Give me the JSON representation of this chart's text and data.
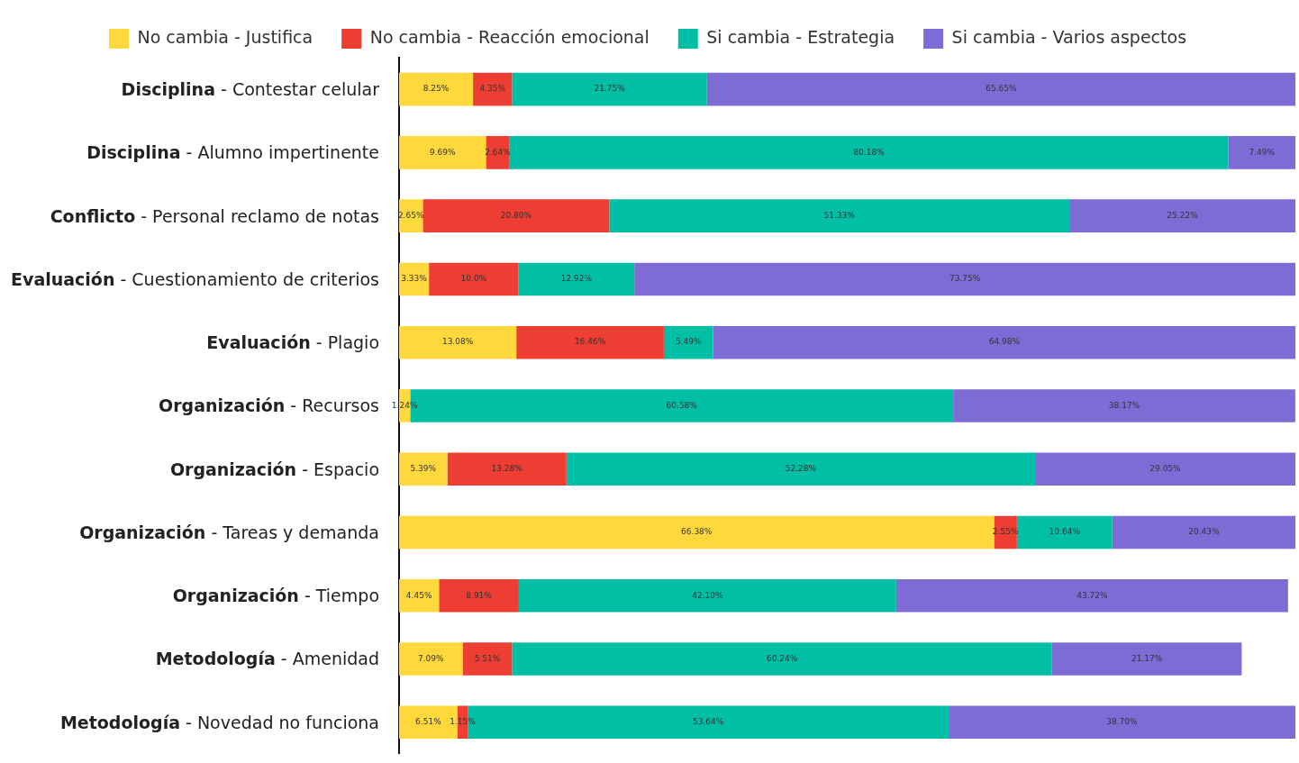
{
  "chart_data": {
    "type": "bar",
    "orientation": "horizontal",
    "stacked": true,
    "legend": "top",
    "grid": false,
    "tick_labels": "y",
    "xlim": [
      0,
      100
    ],
    "categories": [
      "Disciplina - Contestar celular",
      "Disciplina - Alumno impertinente",
      "Conflicto - Personal reclamo de notas",
      "Evaluación - Cuestionamiento de criterios",
      "Evaluación - Plagio",
      "Organización - Recursos",
      "Organización - Espacio",
      "Organización - Tareas y demanda",
      "Organización - Tiempo",
      "Metodología - Amenidad",
      "Metodología - Novedad no funciona"
    ],
    "series": [
      {
        "name": "No cambia - Justifica",
        "color": "#ffd83b",
        "values": [
          8.25,
          9.69,
          2.65,
          3.33,
          13.08,
          1.24,
          5.39,
          66.38,
          4.45,
          7.09,
          6.51
        ],
        "value_labels": [
          "8.25%",
          "9.69%",
          "2.65%",
          "3.33%",
          "13.08%",
          "1.24%",
          "5.39%",
          "66.38%",
          "4.45%",
          "7.09%",
          "6.51%"
        ]
      },
      {
        "name": "No cambia - Reacción emocional",
        "color": "#ee3d32",
        "values": [
          4.35,
          2.64,
          20.8,
          10.0,
          16.46,
          null,
          13.28,
          2.55,
          8.91,
          5.51,
          1.15
        ],
        "value_labels": [
          "4.35%",
          "2.64%",
          "20.80%",
          "10.0%",
          "16.46%",
          null,
          "13.28%",
          "2.55%",
          "8.91%",
          "5.51%",
          "1.15%"
        ]
      },
      {
        "name": "Si cambia - Estrategia",
        "color": "#00bfa5",
        "values": [
          21.75,
          80.18,
          51.33,
          12.92,
          5.49,
          60.58,
          52.28,
          10.64,
          42.1,
          60.24,
          53.64
        ],
        "value_labels": [
          "21.75%",
          "80.18%",
          "51.33%",
          "12.92%",
          "5.49%",
          "60.58%",
          "52.28%",
          "10.64%",
          "42.10%",
          "60.24%",
          "53.64%"
        ]
      },
      {
        "name": "Si cambia - Varios aspectos",
        "color": "#7e6bd6",
        "values": [
          65.65,
          7.49,
          25.22,
          73.75,
          64.98,
          38.17,
          29.05,
          20.43,
          43.72,
          21.17,
          38.7
        ],
        "value_labels": [
          "65.65%",
          "7.49%",
          "25.22%",
          "73.75%",
          "64.98%",
          "38.17%",
          "29.05%",
          "20.43%",
          "43.72%",
          "21.17%",
          "38.70%"
        ]
      }
    ]
  }
}
